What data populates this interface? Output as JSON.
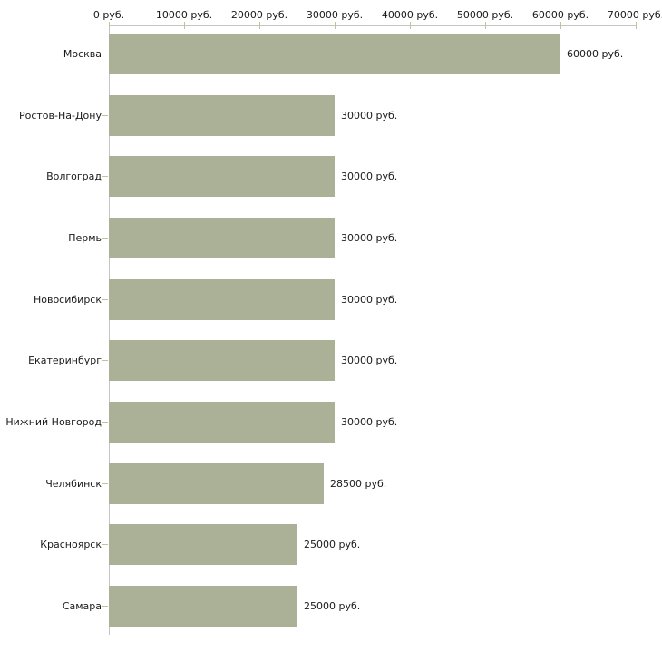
{
  "chart_data": {
    "type": "bar",
    "orientation": "horizontal",
    "categories": [
      "Москва",
      "Ростов-На-Дону",
      "Волгоград",
      "Пермь",
      "Новосибирск",
      "Екатеринбург",
      "Нижний Новгород",
      "Челябинск",
      "Красноярск",
      "Самара"
    ],
    "values": [
      60000,
      30000,
      30000,
      30000,
      30000,
      30000,
      30000,
      28500,
      25000,
      25000
    ],
    "value_labels": [
      "60000 руб.",
      "30000 руб.",
      "30000 руб.",
      "30000 руб.",
      "30000 руб.",
      "30000 руб.",
      "30000 руб.",
      "28500 руб.",
      "25000 руб.",
      "25000 руб."
    ],
    "x_axis": {
      "position": "top",
      "range": [
        0,
        70000
      ],
      "tick_values": [
        0,
        10000,
        20000,
        30000,
        40000,
        50000,
        60000,
        70000
      ],
      "tick_labels": [
        "0 руб.",
        "10000 руб.",
        "20000 руб.",
        "30000 руб.",
        "40000 руб.",
        "50000 руб.",
        "60000 руб.",
        "70000 руб."
      ]
    },
    "grid": false,
    "legend": "none",
    "colors": {
      "bar": "#abb196",
      "axis_line": "#c5c5c5",
      "tick_mark": "#c2c29a",
      "text": "#1a1a1a",
      "background": "#ffffff"
    }
  }
}
